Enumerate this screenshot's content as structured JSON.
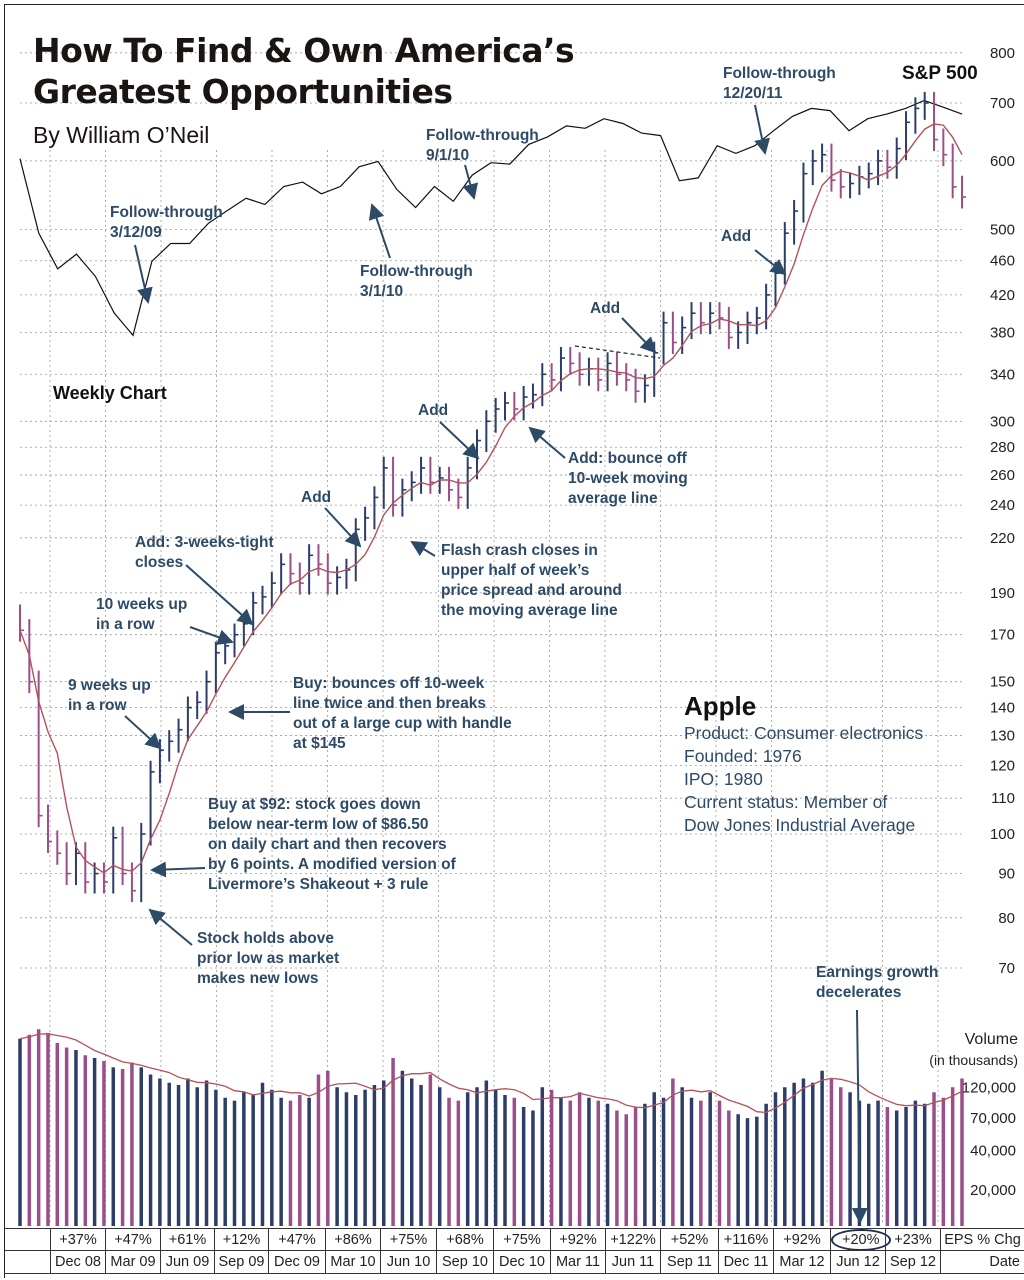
{
  "header": {
    "title": "How To Find & Own America’s\nGreatest Opportunities",
    "byline": "By William O’Neil"
  },
  "labels": {
    "sp500": "S&P 500",
    "weekly_chart": "Weekly Chart",
    "volume": "Volume",
    "volume_unit": "(in thousands)"
  },
  "company": {
    "name": "Apple",
    "product": "Product: Consumer electronics",
    "founded": "Founded: 1976",
    "ipo": "IPO: 1980",
    "status_1": "Current status: Member of",
    "status_2": "Dow Jones Industrial Average"
  },
  "annotations": [
    "Follow-through\n3/12/09",
    "Follow-through\n3/1/10",
    "Follow-through\n9/1/10",
    "Follow-through\n12/20/11",
    "Add",
    "Add",
    "Add",
    "Add",
    "Add: bounce off\n10-week moving\naverage line",
    "Flash crash closes in\nupper half of week’s\nprice spread and around\nthe moving average line",
    "Add: 3-weeks-tight\ncloses",
    "10 weeks up\nin a row",
    "9 weeks up\nin a row",
    "Buy:  bounces off 10-week\nline twice and then breaks\nout of a large cup with handle\nat $145",
    "Buy at $92: stock goes down\nbelow near-term low of $86.50\non daily chart and then recovers\nby 6 points. A modified version of\nLivermore’s Shakeout + 3 rule",
    "Stock holds above\nprior low as market\nmakes new lows",
    "Earnings growth\ndecelerates"
  ],
  "table": {
    "eps_label": "EPS % Chg",
    "date_label": "Date",
    "eps": [
      "+37%",
      "+47%",
      "+61%",
      "+12%",
      "+47%",
      "+86%",
      "+75%",
      "+68%",
      "+75%",
      "+92%",
      "+122%",
      "+52%",
      "+116%",
      "+92%",
      "+20%",
      "+23%"
    ],
    "dates": [
      "Dec 08",
      "Mar 09",
      "Jun 09",
      "Sep 09",
      "Dec 09",
      "Mar 10",
      "Jun 10",
      "Sep 10",
      "Dec 10",
      "Mar 11",
      "Jun 11",
      "Sep 11",
      "Dec 11",
      "Mar 12",
      "Jun 12",
      "Sep 12"
    ],
    "highlighted_eps": "+20%"
  },
  "colors": {
    "up_bar": "#2b3d68",
    "down_bar": "#9a4e8a",
    "moving_average": "#b4525a",
    "sp500_line": "#111111",
    "annotation": "#2d4a66",
    "grid": "#9a9a9a"
  },
  "chart_data": {
    "type": "bar",
    "subtype": "weekly price bars (log scale) with S&P 500 overlay and volume",
    "price_axis": {
      "scale": "log",
      "ticks": [
        800,
        700,
        600,
        500,
        460,
        420,
        380,
        340,
        300,
        280,
        260,
        240,
        220,
        190,
        170,
        150,
        140,
        130,
        120,
        110,
        100,
        90,
        80,
        70
      ],
      "range": [
        70,
        800
      ]
    },
    "volume_axis": {
      "scale": "log",
      "ticks": [
        "120,000",
        "70,000",
        "40,000",
        "20,000"
      ],
      "tick_values": [
        120000,
        70000,
        40000,
        20000
      ]
    },
    "x_ticks": [
      "Dec 08",
      "Mar 09",
      "Jun 09",
      "Sep 09",
      "Dec 09",
      "Mar 10",
      "Jun 10",
      "Sep 10",
      "Dec 10",
      "Mar 11",
      "Jun 11",
      "Sep 11",
      "Dec 11",
      "Mar 12",
      "Jun 12",
      "Sep 12"
    ],
    "grid": true,
    "moving_average": "10-week",
    "apple_close": [
      172,
      150,
      105,
      98,
      95,
      90,
      95,
      88,
      90,
      88,
      99,
      90,
      86,
      100,
      118,
      125,
      128,
      132,
      140,
      142,
      150,
      162,
      165,
      170,
      175,
      185,
      188,
      195,
      205,
      200,
      195,
      210,
      205,
      195,
      198,
      202,
      225,
      232,
      245,
      265,
      240,
      250,
      255,
      265,
      255,
      258,
      250,
      245,
      265,
      285,
      300,
      310,
      315,
      310,
      320,
      322,
      340,
      335,
      355,
      350,
      340,
      345,
      335,
      350,
      340,
      335,
      325,
      330,
      360,
      390,
      370,
      385,
      400,
      390,
      400,
      395,
      375,
      380,
      390,
      395,
      420,
      445,
      495,
      525,
      580,
      600,
      610,
      570,
      560,
      565,
      575,
      580,
      600,
      590,
      620,
      665,
      690,
      700,
      635,
      610,
      560,
      545
    ],
    "volume": [
      280000,
      300000,
      330000,
      310000,
      260000,
      240000,
      230000,
      210000,
      200000,
      190000,
      170000,
      165000,
      185000,
      170000,
      150000,
      140000,
      130000,
      125000,
      140000,
      120000,
      135000,
      115000,
      100000,
      95000,
      110000,
      105000,
      130000,
      115000,
      100000,
      95000,
      105000,
      100000,
      150000,
      160000,
      120000,
      110000,
      105000,
      115000,
      125000,
      135000,
      200000,
      160000,
      140000,
      125000,
      150000,
      120000,
      100000,
      95000,
      110000,
      120000,
      135000,
      115000,
      105000,
      100000,
      85000,
      80000,
      120000,
      115000,
      100000,
      95000,
      110000,
      100000,
      95000,
      90000,
      80000,
      75000,
      85000,
      90000,
      110000,
      100000,
      140000,
      120000,
      100000,
      95000,
      110000,
      95000,
      80000,
      75000,
      70000,
      72000,
      90000,
      110000,
      120000,
      130000,
      140000,
      130000,
      160000,
      140000,
      120000,
      110000,
      95000,
      90000,
      95000,
      85000,
      80000,
      85000,
      95000,
      90000,
      110000,
      100000,
      120000,
      140000
    ],
    "sp500": [
      1200,
      950,
      850,
      890,
      830,
      740,
      690,
      870,
      920,
      920,
      980,
      1020,
      1060,
      1040,
      1100,
      1115,
      1075,
      1100,
      1170,
      1190,
      1090,
      1030,
      1100,
      1050,
      1140,
      1185,
      1180,
      1255,
      1285,
      1330,
      1320,
      1360,
      1340,
      1300,
      1290,
      1120,
      1130,
      1250,
      1220,
      1250,
      1310,
      1370,
      1405,
      1395,
      1310,
      1360,
      1380,
      1405,
      1440,
      1410,
      1380
    ]
  }
}
